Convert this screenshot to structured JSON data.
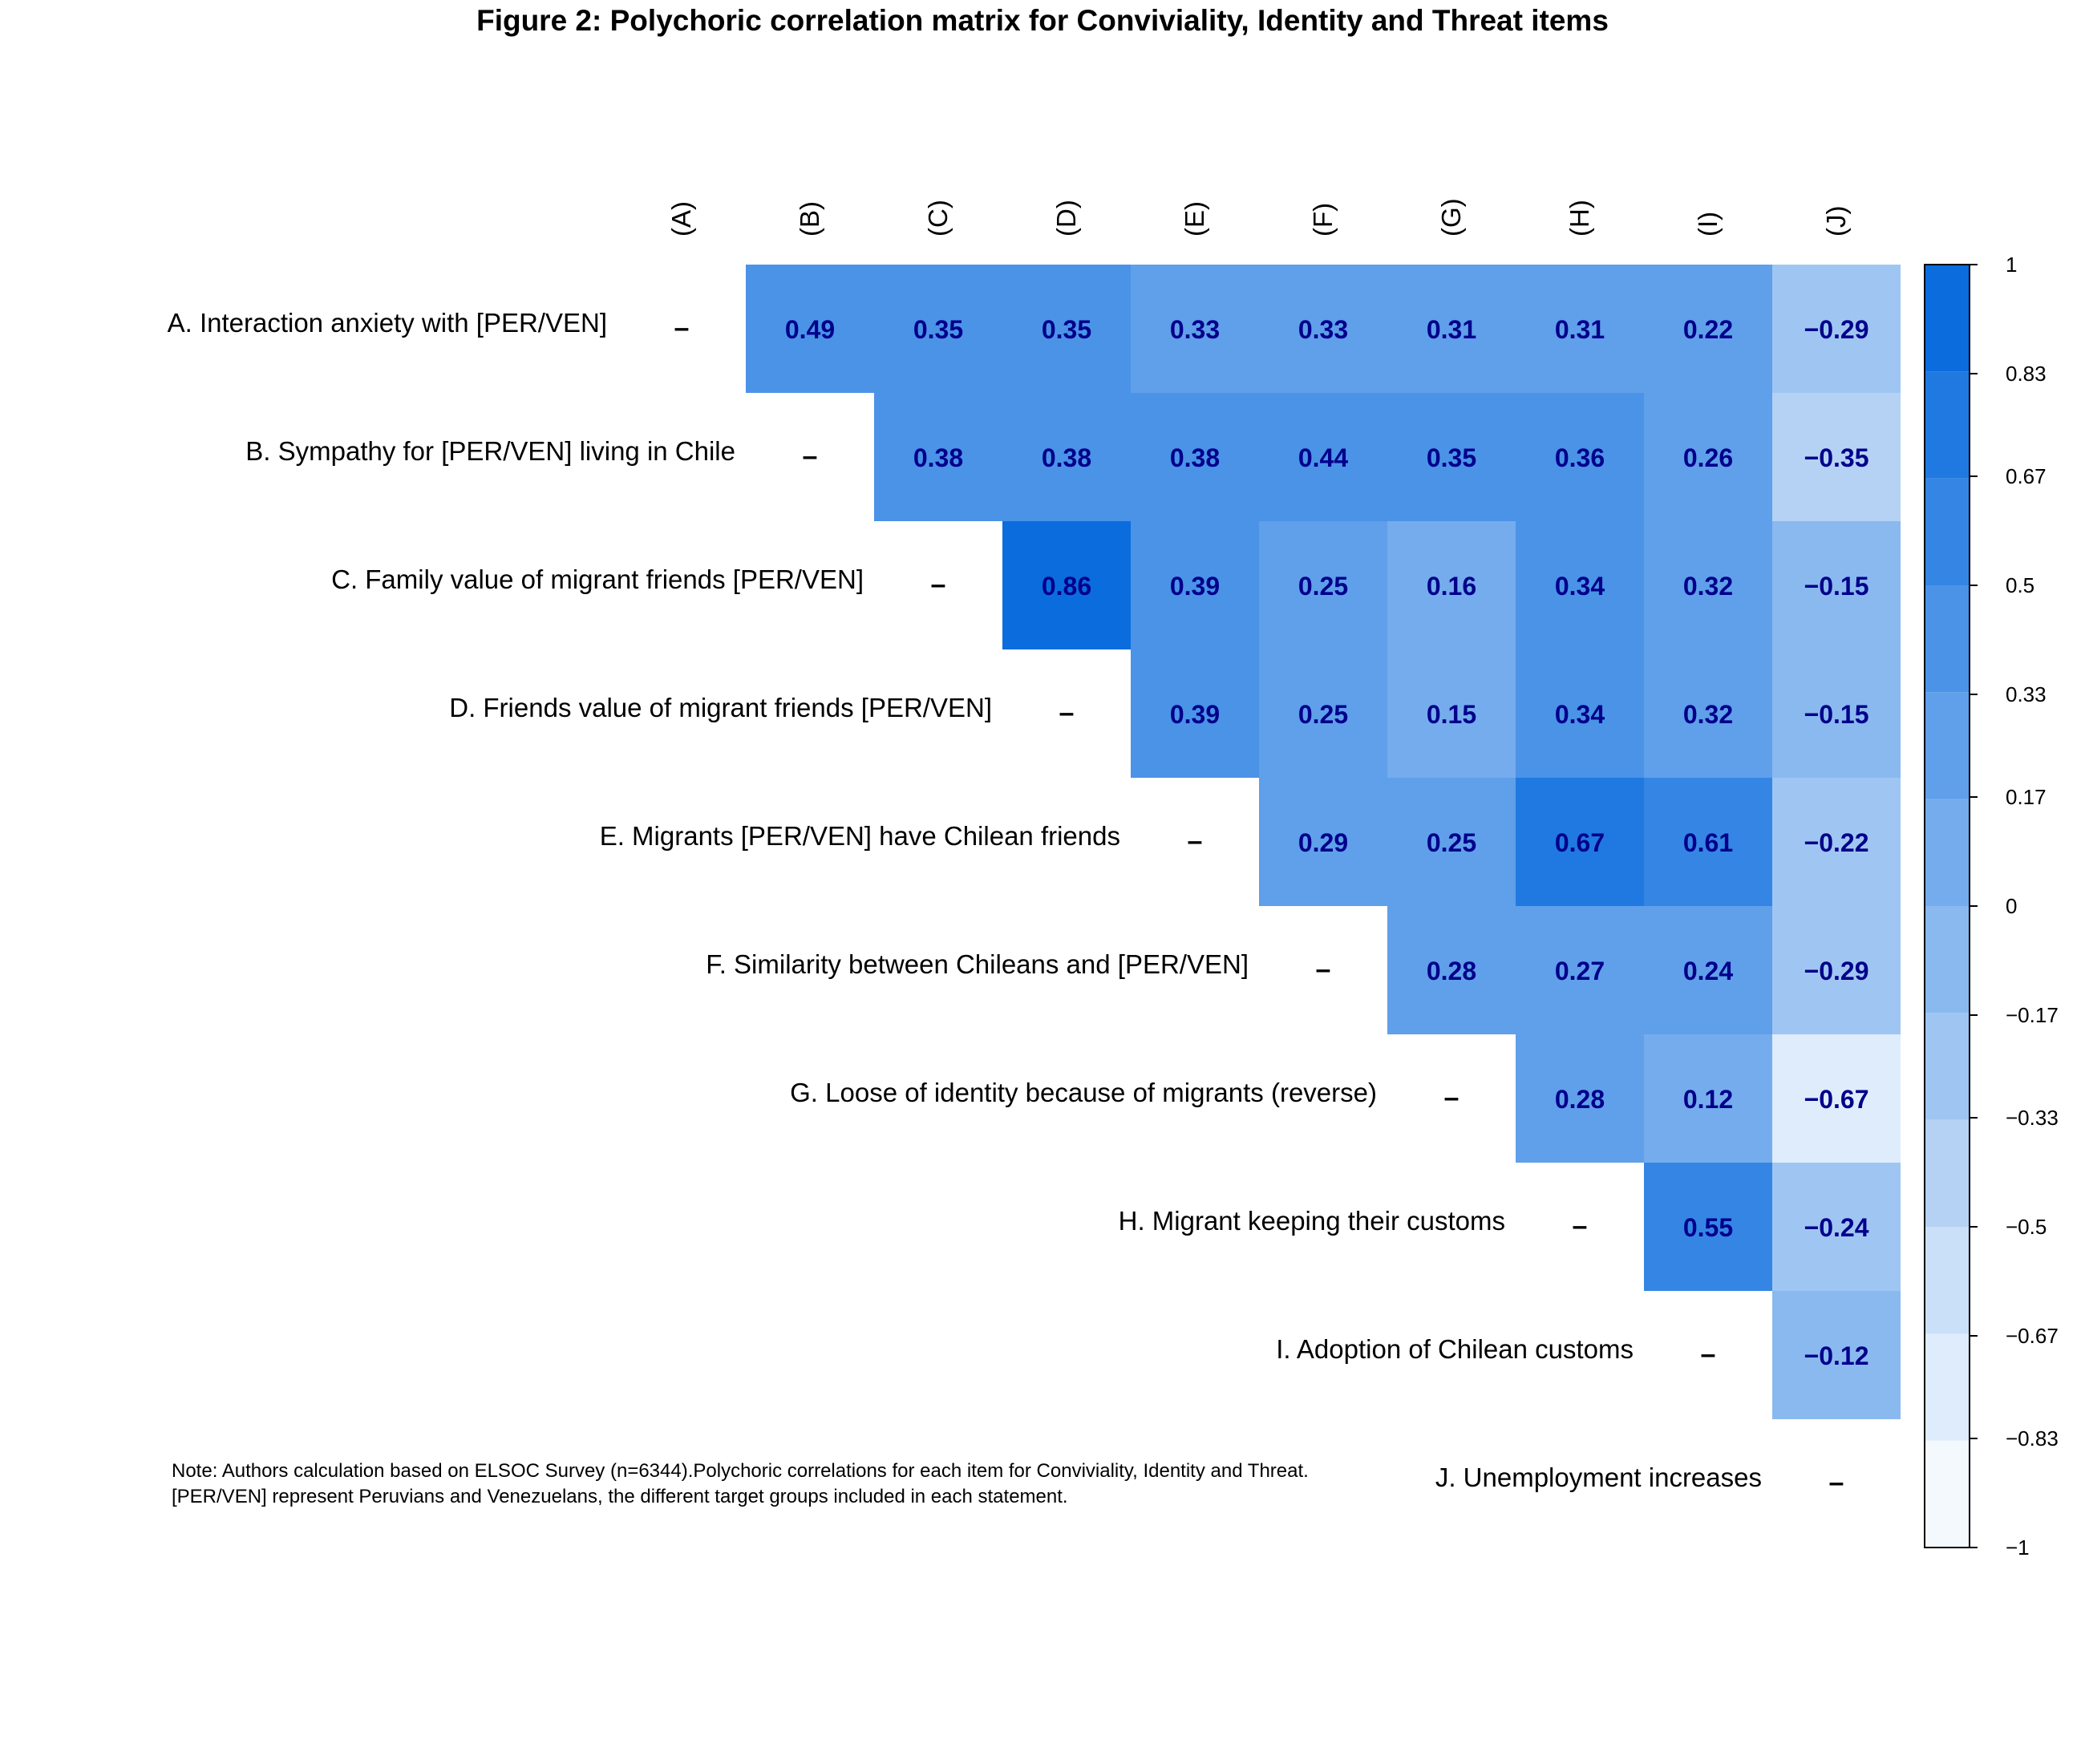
{
  "chart_data": {
    "type": "heatmap",
    "title": "Figure 2: Polychoric correlation matrix for Conviviality, Identity and Threat items",
    "columns": [
      "(A)",
      "(B)",
      "(C)",
      "(D)",
      "(E)",
      "(F)",
      "(G)",
      "(H)",
      "(I)",
      "(J)"
    ],
    "rows": [
      "A. Interaction anxiety with [PER/VEN]",
      "B. Sympathy for [PER/VEN] living in Chile",
      "C. Family value of migrant friends [PER/VEN]",
      "D. Friends value of migrant friends [PER/VEN]",
      "E. Migrants [PER/VEN] have Chilean friends",
      "F. Similarity between Chileans and [PER/VEN]",
      "G. Loose of identity because of migrants (reverse)",
      "H. Migrant keeping their customs",
      "I. Adoption of Chilean customs",
      "J. Unemployment increases"
    ],
    "diagonal_label": "–",
    "values": [
      [
        null,
        0.49,
        0.35,
        0.35,
        0.33,
        0.33,
        0.31,
        0.31,
        0.22,
        -0.29
      ],
      [
        null,
        null,
        0.38,
        0.38,
        0.38,
        0.44,
        0.35,
        0.36,
        0.26,
        -0.35
      ],
      [
        null,
        null,
        null,
        0.86,
        0.39,
        0.25,
        0.16,
        0.34,
        0.32,
        -0.15
      ],
      [
        null,
        null,
        null,
        null,
        0.39,
        0.25,
        0.15,
        0.34,
        0.32,
        -0.15
      ],
      [
        null,
        null,
        null,
        null,
        null,
        0.29,
        0.25,
        0.67,
        0.61,
        -0.22
      ],
      [
        null,
        null,
        null,
        null,
        null,
        null,
        0.28,
        0.27,
        0.24,
        -0.29
      ],
      [
        null,
        null,
        null,
        null,
        null,
        null,
        null,
        0.28,
        0.12,
        -0.67
      ],
      [
        null,
        null,
        null,
        null,
        null,
        null,
        null,
        null,
        0.55,
        -0.24
      ],
      [
        null,
        null,
        null,
        null,
        null,
        null,
        null,
        null,
        null,
        -0.12
      ],
      [
        null,
        null,
        null,
        null,
        null,
        null,
        null,
        null,
        null,
        null
      ]
    ],
    "value_labels": [
      [
        "",
        "0.49",
        "0.35",
        "0.35",
        "0.33",
        "0.33",
        "0.31",
        "0.31",
        "0.22",
        "−0.29"
      ],
      [
        "",
        "",
        "0.38",
        "0.38",
        "0.38",
        "0.44",
        "0.35",
        "0.36",
        "0.26",
        "−0.35"
      ],
      [
        "",
        "",
        "",
        "0.86",
        "0.39",
        "0.25",
        "0.16",
        "0.34",
        "0.32",
        "−0.15"
      ],
      [
        "",
        "",
        "",
        "",
        "0.39",
        "0.25",
        "0.15",
        "0.34",
        "0.32",
        "−0.15"
      ],
      [
        "",
        "",
        "",
        "",
        "",
        "0.29",
        "0.25",
        "0.67",
        "0.61",
        "−0.22"
      ],
      [
        "",
        "",
        "",
        "",
        "",
        "",
        "0.28",
        "0.27",
        "0.24",
        "−0.29"
      ],
      [
        "",
        "",
        "",
        "",
        "",
        "",
        "",
        "0.28",
        "0.12",
        "−0.67"
      ],
      [
        "",
        "",
        "",
        "",
        "",
        "",
        "",
        "",
        "0.55",
        "−0.24"
      ],
      [
        "",
        "",
        "",
        "",
        "",
        "",
        "",
        "",
        "",
        "−0.12"
      ],
      [
        "",
        "",
        "",
        "",
        "",
        "",
        "",
        "",
        "",
        ""
      ]
    ],
    "color_scale": {
      "range": [
        -1,
        1
      ],
      "ticks": [
        -1,
        -0.83,
        -0.67,
        -0.5,
        -0.33,
        -0.17,
        0,
        0.17,
        0.33,
        0.5,
        0.67,
        0.83,
        1
      ],
      "tick_labels": [
        "−1",
        "−0.83",
        "−0.67",
        "−0.5",
        "−0.33",
        "−0.17",
        "0",
        "0.17",
        "0.33",
        "0.5",
        "0.67",
        "0.83",
        "1"
      ],
      "bins": 12,
      "low_color": "#ffffff",
      "high_color": "#0066dd",
      "legend_position": "right"
    },
    "note": [
      "Note: Authors calculation based on ELSOC Survey (n=6344).Polychoric correlations for each item for Conviviality, Identity and Threat.",
      "[PER/VEN] represent Peruvians and Venezuelans, the different target groups included in each statement."
    ]
  }
}
